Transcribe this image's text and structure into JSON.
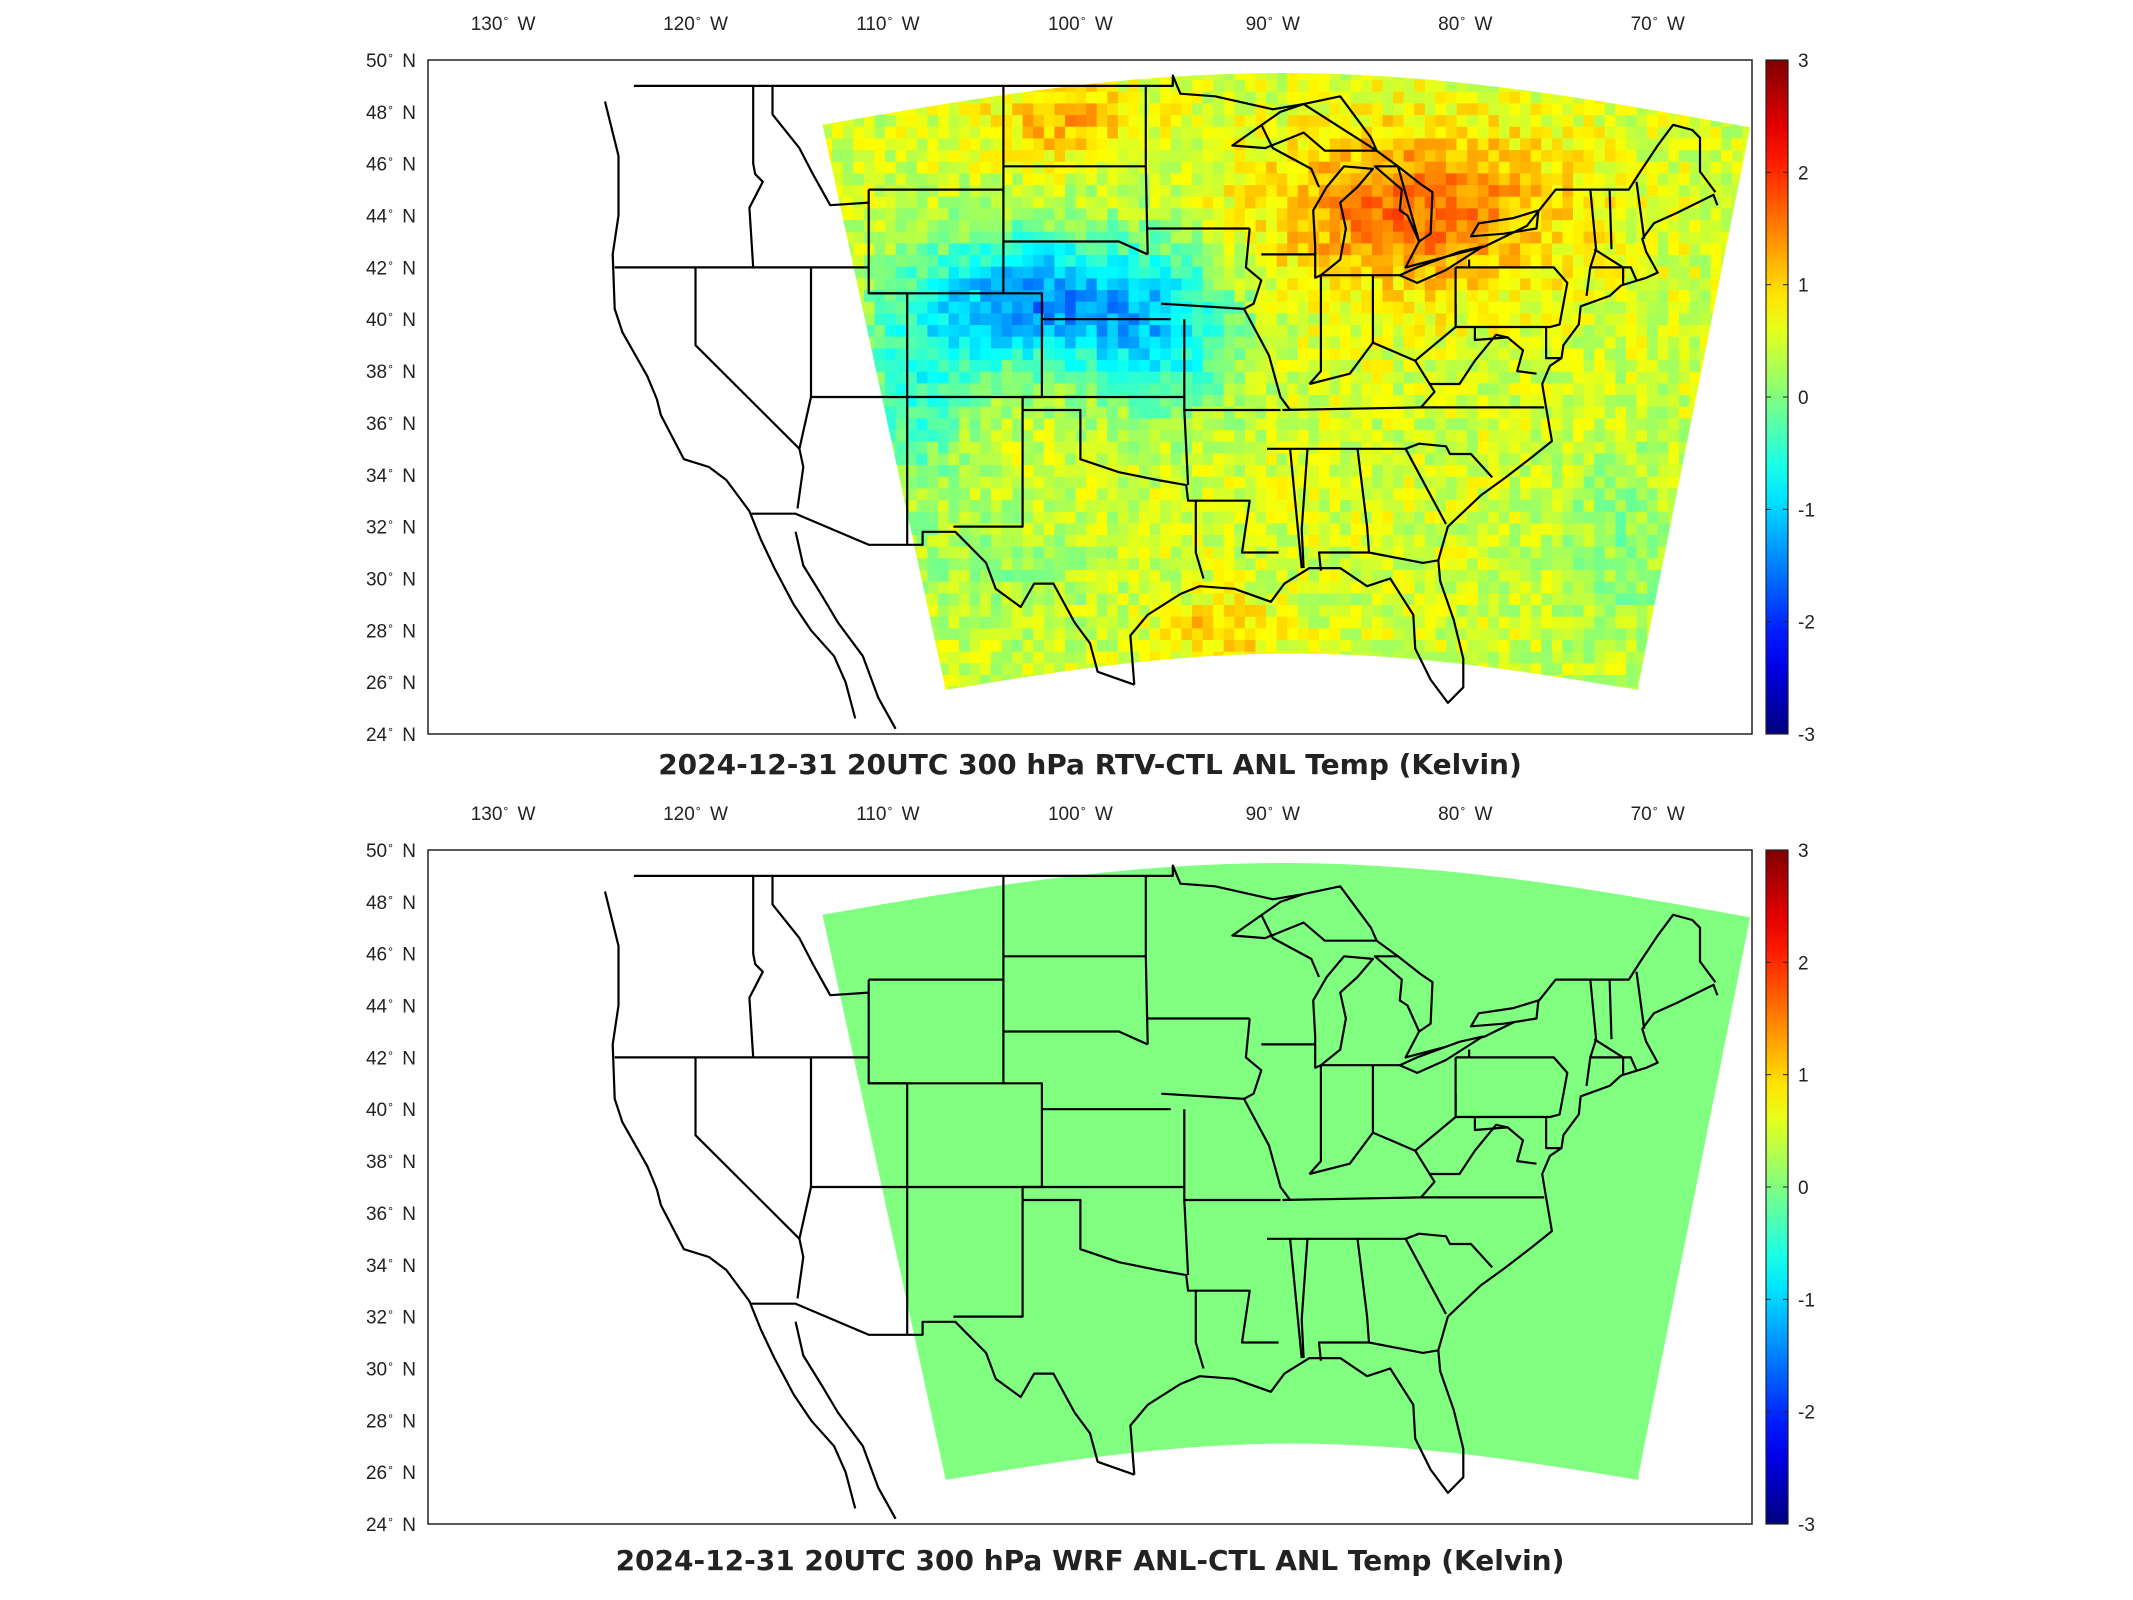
{
  "maps": [
    {
      "title": "2024-12-31 20UTC 300 hPa RTV-CTL ANL Temp (Kelvin)",
      "field": "mixed",
      "colorbar_ticks": [
        "3",
        "2",
        "1",
        "0",
        "-1",
        "-2",
        "-3"
      ],
      "clim": [
        -3,
        3
      ]
    },
    {
      "title": "2024-12-31 20UTC 300 hPa WRF ANL-CTL ANL Temp (Kelvin)",
      "field": "uniform",
      "field_value": 0,
      "colorbar_ticks": [
        "3",
        "2",
        "1",
        "0",
        "-1",
        "-2",
        "-3"
      ],
      "clim": [
        -3,
        3
      ]
    }
  ],
  "lon_ticks": [
    {
      "deg": "130",
      "hemi": "W"
    },
    {
      "deg": "120",
      "hemi": "W"
    },
    {
      "deg": "110",
      "hemi": "W"
    },
    {
      "deg": "100",
      "hemi": "W"
    },
    {
      "deg": "90",
      "hemi": "W"
    },
    {
      "deg": "80",
      "hemi": "W"
    },
    {
      "deg": "70",
      "hemi": "W"
    }
  ],
  "lat_ticks": [
    {
      "deg": "50",
      "hemi": "N"
    },
    {
      "deg": "48",
      "hemi": "N"
    },
    {
      "deg": "46",
      "hemi": "N"
    },
    {
      "deg": "44",
      "hemi": "N"
    },
    {
      "deg": "42",
      "hemi": "N"
    },
    {
      "deg": "40",
      "hemi": "N"
    },
    {
      "deg": "38",
      "hemi": "N"
    },
    {
      "deg": "36",
      "hemi": "N"
    },
    {
      "deg": "34",
      "hemi": "N"
    },
    {
      "deg": "32",
      "hemi": "N"
    },
    {
      "deg": "30",
      "hemi": "N"
    },
    {
      "deg": "28",
      "hemi": "N"
    },
    {
      "deg": "26",
      "hemi": "N"
    },
    {
      "deg": "24",
      "hemi": "N"
    }
  ],
  "colormap": "jet",
  "colors": {
    "outline": "#000000",
    "frame": "#222222",
    "zero_field": "#80ff80"
  }
}
